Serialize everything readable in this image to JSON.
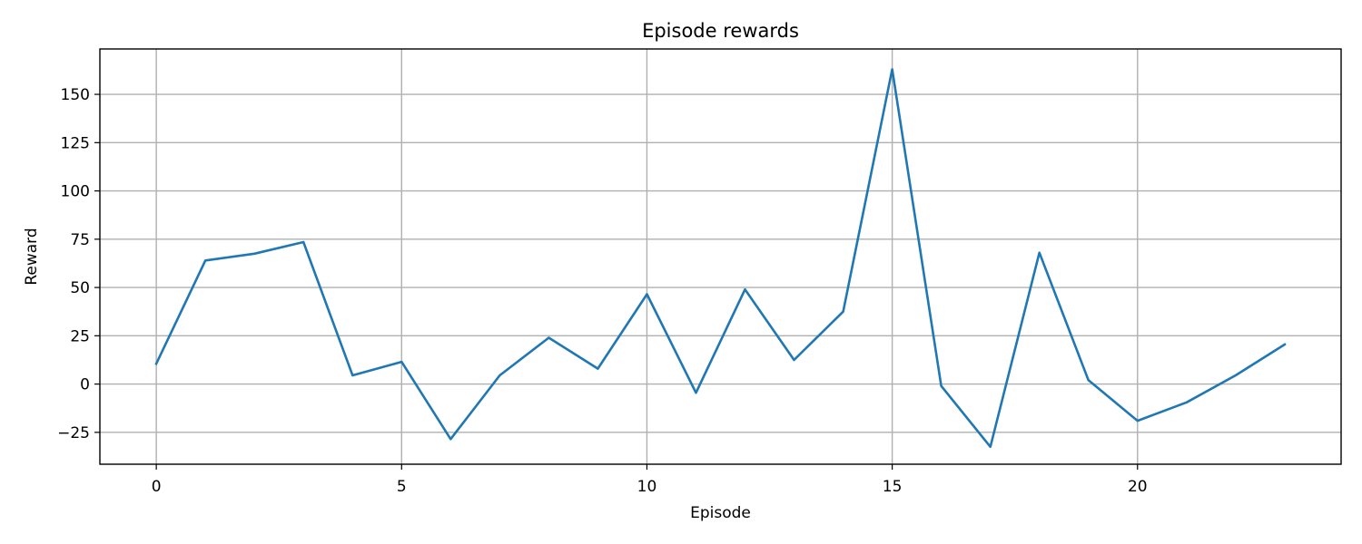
{
  "chart_data": {
    "type": "line",
    "title": "Episode rewards",
    "xlabel": "Episode",
    "ylabel": "Reward",
    "xlim": [
      -1.15,
      24.15
    ],
    "ylim": [
      -41.5,
      173.5
    ],
    "xticks": [
      0,
      5,
      10,
      15,
      20
    ],
    "yticks": [
      -25,
      0,
      25,
      50,
      75,
      100,
      125,
      150
    ],
    "grid": true,
    "series": [
      {
        "color": "#1f77b4",
        "x": [
          0,
          1,
          2,
          3,
          4,
          5,
          6,
          7,
          8,
          9,
          10,
          11,
          12,
          13,
          14,
          15,
          16,
          17,
          18,
          19,
          20,
          21,
          22,
          23
        ],
        "values": [
          10.5,
          64,
          67.5,
          73.5,
          4.5,
          11.5,
          -28.5,
          4.5,
          24,
          8,
          46.5,
          -4.5,
          49,
          12.5,
          37.5,
          163,
          -1,
          -32.5,
          68,
          2,
          -19,
          -9.5,
          4.5,
          20.5
        ]
      }
    ]
  }
}
